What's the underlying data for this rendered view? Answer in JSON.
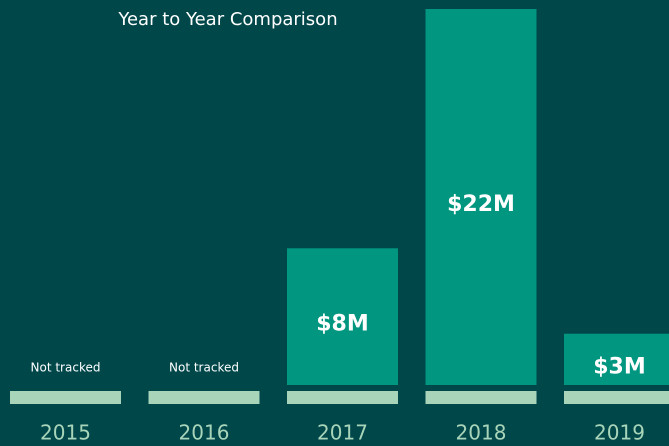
{
  "chart_data": {
    "type": "bar",
    "title": "Year to Year Comparison",
    "categories": [
      "2015",
      "2016",
      "2017",
      "2018",
      "2019"
    ],
    "values": [
      null,
      null,
      8,
      22,
      3
    ],
    "value_labels": [
      "Not tracked",
      "Not tracked",
      "$8M",
      "$22M",
      "$3M"
    ],
    "color": "#00967f",
    "base_color": "#a8d5b9"
  }
}
